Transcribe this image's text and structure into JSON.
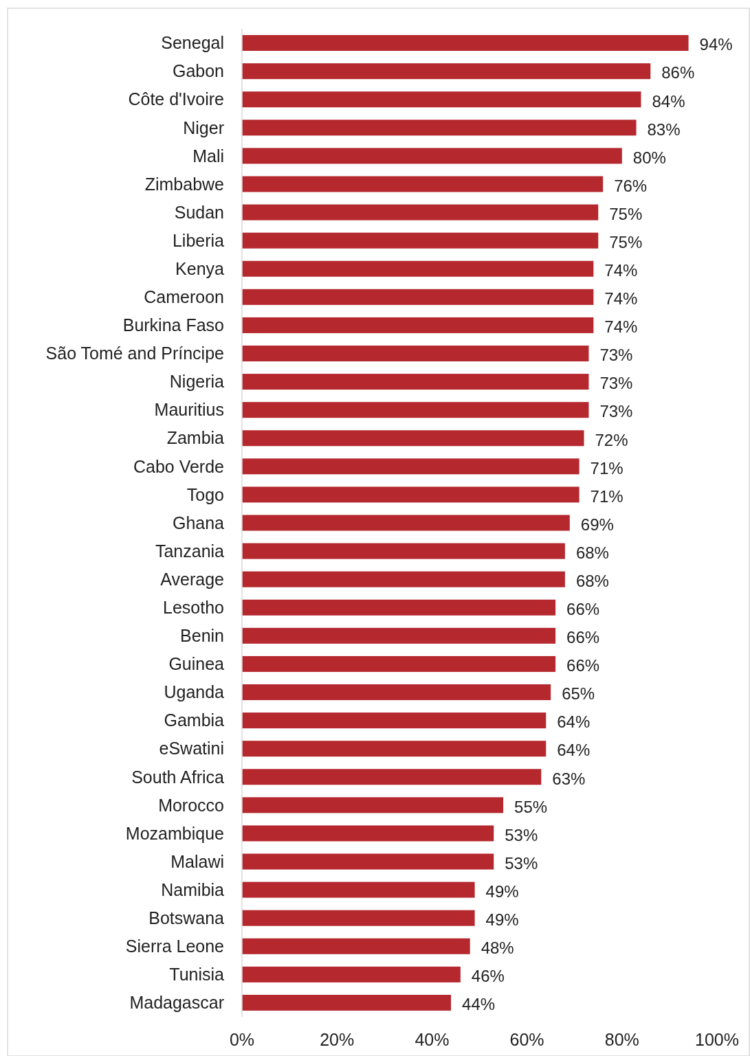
{
  "chart_data": {
    "type": "bar",
    "orientation": "horizontal",
    "categories": [
      "Senegal",
      "Gabon",
      "Côte d'Ivoire",
      "Niger",
      "Mali",
      "Zimbabwe",
      "Sudan",
      "Liberia",
      "Kenya",
      "Cameroon",
      "Burkina Faso",
      "São Tomé and Príncipe",
      "Nigeria",
      "Mauritius",
      "Zambia",
      "Cabo Verde",
      "Togo",
      "Ghana",
      "Tanzania",
      "Average",
      "Lesotho",
      "Benin",
      "Guinea",
      "Uganda",
      "Gambia",
      "eSwatini",
      "South Africa",
      "Morocco",
      "Mozambique",
      "Malawi",
      "Namibia",
      "Botswana",
      "Sierra Leone",
      "Tunisia",
      "Madagascar"
    ],
    "values": [
      94,
      86,
      84,
      83,
      80,
      76,
      75,
      75,
      74,
      74,
      74,
      73,
      73,
      73,
      72,
      71,
      71,
      69,
      68,
      68,
      66,
      66,
      66,
      65,
      64,
      64,
      63,
      55,
      53,
      53,
      49,
      49,
      48,
      46,
      44
    ],
    "value_labels": [
      "94%",
      "86%",
      "84%",
      "83%",
      "80%",
      "76%",
      "75%",
      "75%",
      "74%",
      "74%",
      "74%",
      "73%",
      "73%",
      "73%",
      "72%",
      "71%",
      "71%",
      "69%",
      "68%",
      "68%",
      "66%",
      "66%",
      "66%",
      "65%",
      "64%",
      "64%",
      "63%",
      "55%",
      "53%",
      "53%",
      "49%",
      "49%",
      "48%",
      "46%",
      "44%"
    ],
    "color": "#b5282e",
    "xlim": [
      0,
      100
    ],
    "xticks": [
      {
        "value": 0,
        "label": "0%"
      },
      {
        "value": 20,
        "label": "20%"
      },
      {
        "value": 40,
        "label": "40%"
      },
      {
        "value": 60,
        "label": "60%"
      },
      {
        "value": 80,
        "label": "80%"
      },
      {
        "value": 100,
        "label": "100%"
      }
    ],
    "grid": false
  }
}
